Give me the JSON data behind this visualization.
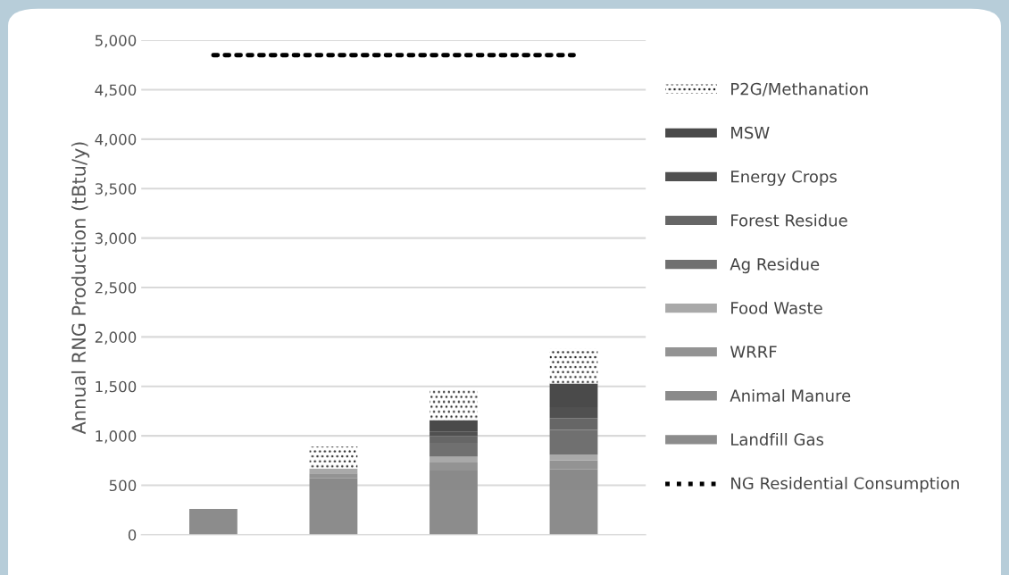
{
  "chart_data": {
    "type": "bar",
    "stacked": true,
    "ylabel": "Annual RNG Production (tBtu/y)",
    "categories": [
      null,
      null,
      null,
      null
    ],
    "ylim": [
      0,
      5000
    ],
    "yticks": [
      {
        "value": 0,
        "label": "0"
      },
      {
        "value": 500,
        "label": "500"
      },
      {
        "value": 1000,
        "label": "1,000"
      },
      {
        "value": 1500,
        "label": "1,500"
      },
      {
        "value": 2000,
        "label": "2,000"
      },
      {
        "value": 2500,
        "label": "2,500"
      },
      {
        "value": 3000,
        "label": "3,000"
      },
      {
        "value": 3500,
        "label": "3,500"
      },
      {
        "value": 4000,
        "label": "4,000"
      },
      {
        "value": 4500,
        "label": "4,500"
      },
      {
        "value": 5000,
        "label": "5,000"
      }
    ],
    "grid": "y",
    "legend": "right",
    "series": [
      {
        "name": "Landfill Gas",
        "color": "#8c8c8c",
        "values": [
          260,
          450,
          450,
          450
        ]
      },
      {
        "name": "Animal Manure",
        "color": "#8a8a8a",
        "values": [
          0,
          120,
          200,
          210
        ]
      },
      {
        "name": "WRRF",
        "color": "#939393",
        "values": [
          0,
          50,
          80,
          90
        ]
      },
      {
        "name": "Food Waste",
        "color": "#a9a9a9",
        "values": [
          0,
          50,
          60,
          60
        ]
      },
      {
        "name": "Ag Residue",
        "color": "#707070",
        "values": [
          0,
          0,
          140,
          250
        ]
      },
      {
        "name": "Forest Residue",
        "color": "#666666",
        "values": [
          0,
          0,
          70,
          120
        ]
      },
      {
        "name": "Energy Crops",
        "color": "#505050",
        "values": [
          0,
          0,
          40,
          110
        ]
      },
      {
        "name": "MSW",
        "color": "#4a4a4a",
        "values": [
          0,
          0,
          120,
          240
        ]
      },
      {
        "name": "P2G/Methanation",
        "color": "#ffffff",
        "line_style": "dotted",
        "values": [
          0,
          220,
          300,
          350
        ]
      },
      {
        "name": "NG Residential Consumption",
        "type": "line",
        "color": "#000000",
        "line_style": "dotted",
        "values": [
          4850,
          4850,
          4850,
          4850
        ]
      }
    ]
  }
}
